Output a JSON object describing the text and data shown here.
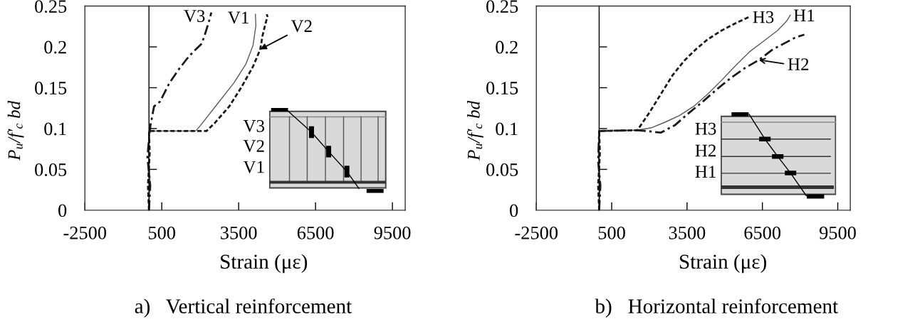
{
  "chart_data": [
    {
      "type": "line",
      "title": "a)   Vertical reinforcement",
      "xlabel": "Strain (με)",
      "ylabel": "P$_{u}$/f′$_{c}$ bd",
      "xlim": [
        -2500,
        10000
      ],
      "xticks": [
        -2500,
        500,
        3500,
        6500,
        9500
      ],
      "ylim": [
        0,
        0.25
      ],
      "yticks": [
        0,
        0.05,
        0.1,
        0.15,
        0.2,
        0.25
      ],
      "series": [
        {
          "name": "V1",
          "color": "#5a5a5a",
          "line_style": "solid",
          "x": [
            0,
            40,
            -30,
            0,
            1827,
            2014,
            2665,
            3316,
            3782,
            4061,
            4173,
            4154
          ],
          "values": [
            0,
            0.04,
            0.075,
            0.097,
            0.097,
            0.104,
            0.13,
            0.156,
            0.179,
            0.202,
            0.226,
            0.24
          ]
        },
        {
          "color": "#1a1a1a",
          "line_style": "dashed",
          "x": [
            0,
            -40,
            30,
            0,
            2246,
            2572,
            3131,
            3596,
            4061,
            4341,
            4434,
            4527,
            4620,
            4601
          ],
          "values": [
            0,
            0.03,
            0.07,
            0.097,
            0.097,
            0.107,
            0.127,
            0.15,
            0.176,
            0.197,
            0.214,
            0.226,
            0.237,
            0.24
          ]
        },
        {
          "name": "V3",
          "color": "#1a1a1a",
          "line_style": "dashdot",
          "x": [
            0,
            50,
            -60,
            10,
            58,
            198,
            430,
            802,
            1175,
            1547,
            1827,
            2060,
            2200,
            2340,
            2433
          ],
          "values": [
            0,
            0.03,
            0.065,
            0.09,
            0.104,
            0.127,
            0.133,
            0.156,
            0.173,
            0.188,
            0.197,
            0.204,
            0.217,
            0.231,
            0.242
          ]
        }
      ],
      "annotations": [
        "V3",
        "V2",
        "V1",
        {
          "text": "V2",
          "x": 4341,
          "y": 0.197
        }
      ]
    },
    {
      "type": "line",
      "title": "b)   Horizontal reinforcement",
      "xlabel": "Strain (με)",
      "ylabel": "P$_{u}$/f′$_{c}$ bd",
      "xlim": [
        -2500,
        10000
      ],
      "xticks": [
        -2500,
        500,
        3500,
        6500,
        9500
      ],
      "ylim": [
        0,
        0.25
      ],
      "yticks": [
        0,
        0.05,
        0.1,
        0.15,
        0.2,
        0.25
      ],
      "series": [
        {
          "name": "H1",
          "color": "#5a5a5a",
          "line_style": "solid",
          "x": [
            0,
            40,
            -30,
            0,
            1523,
            2081,
            2639,
            3197,
            3755,
            4313,
            4871,
            5429,
            5987,
            6545,
            7103,
            7475,
            7614
          ],
          "values": [
            0,
            0.03,
            0.07,
            0.097,
            0.098,
            0.101,
            0.108,
            0.116,
            0.127,
            0.142,
            0.159,
            0.177,
            0.194,
            0.207,
            0.22,
            0.232,
            0.239
          ]
        },
        {
          "color": "#1a1a1a",
          "line_style": "dashdot",
          "x": [
            0,
            50,
            -40,
            0,
            1523,
            1900,
            2454,
            3012,
            3570,
            4128,
            4685,
            5243,
            5801,
            6359,
            6917,
            7475,
            7847,
            8171
          ],
          "values": [
            0,
            0.03,
            0.06,
            0.097,
            0.098,
            0.097,
            0.095,
            0.104,
            0.119,
            0.133,
            0.148,
            0.162,
            0.174,
            0.184,
            0.197,
            0.206,
            0.212,
            0.215
          ]
        },
        {
          "name": "H3",
          "color": "#1a1a1a",
          "line_style": "dashed",
          "x": [
            0,
            -40,
            30,
            0,
            1523,
            1989,
            2454,
            2918,
            3384,
            3849,
            4313,
            4871,
            5429,
            5987
          ],
          "values": [
            0,
            0.03,
            0.07,
            0.097,
            0.098,
            0.119,
            0.142,
            0.165,
            0.183,
            0.197,
            0.209,
            0.22,
            0.229,
            0.237
          ]
        }
      ],
      "annotations": [
        "H3",
        "H2",
        "H1",
        {
          "text": "H2",
          "x": 6359,
          "y": 0.184
        }
      ]
    }
  ]
}
